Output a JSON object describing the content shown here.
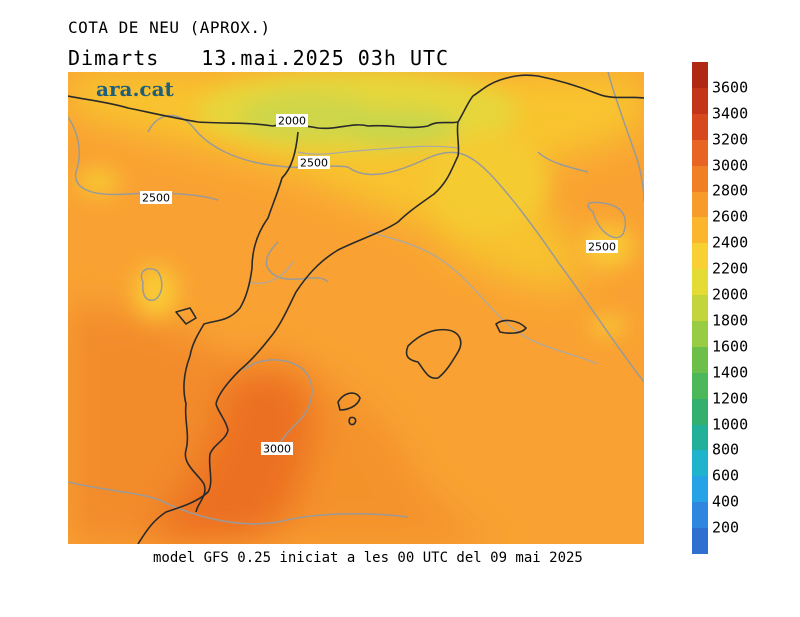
{
  "title": "COTA DE NEU (APROX.)",
  "subtitle": {
    "day": "Dimarts",
    "datetime": "13.mai.2025 03h UTC"
  },
  "logo": "ara.cat",
  "footer": "model GFS 0.25 iniciat a les 00 UTC del 09 mai 2025",
  "contour_labels": [
    "2000",
    "2500",
    "2500",
    "2500",
    "3000"
  ],
  "colorbar": {
    "ticks": [
      "200",
      "400",
      "600",
      "800",
      "1000",
      "1200",
      "1400",
      "1600",
      "1800",
      "2000",
      "2200",
      "2400",
      "2600",
      "2800",
      "3000",
      "3200",
      "3400",
      "3600"
    ],
    "colors": [
      "#2f6fd0",
      "#2e86de",
      "#26a2e6",
      "#1fb3cc",
      "#22b09a",
      "#33b06e",
      "#4cb85a",
      "#6cc04a",
      "#98cc42",
      "#c2d63c",
      "#e4dc34",
      "#f8d034",
      "#fbb62e",
      "#f79c2a",
      "#f08026",
      "#e86422",
      "#d8481e",
      "#c43418",
      "#b02814"
    ]
  }
}
